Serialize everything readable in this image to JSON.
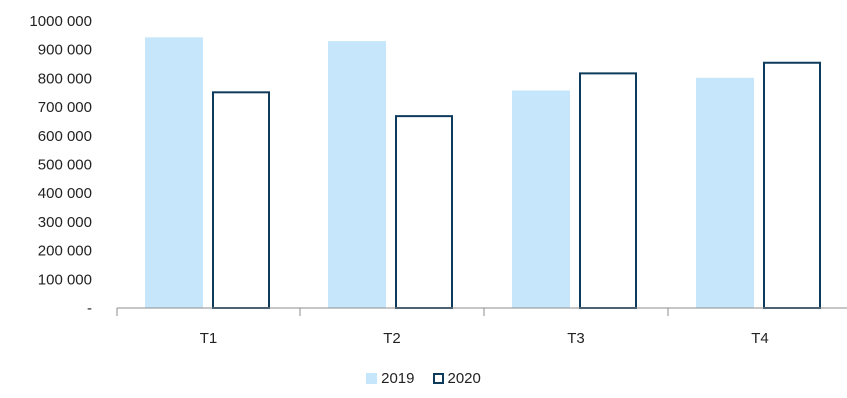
{
  "chart_data": {
    "type": "bar",
    "categories": [
      "T1",
      "T2",
      "T3",
      "T4"
    ],
    "series": [
      {
        "name": "2019",
        "values": [
          943000,
          930000,
          758000,
          802000
        ],
        "fill": "#c5e6fb",
        "stroke": "none"
      },
      {
        "name": "2020",
        "values": [
          755000,
          672000,
          821000,
          858000
        ],
        "fill": "#ffffff",
        "stroke": "#0e3a5c"
      }
    ],
    "yticks": [
      "-",
      "100 000",
      "200 000",
      "300 000",
      "400 000",
      "500 000",
      "600 000",
      "700 000",
      "800 000",
      "900 000",
      "1000 000"
    ],
    "ylim": [
      0,
      1000000
    ],
    "grid": false,
    "legend_position": "bottom-center"
  }
}
